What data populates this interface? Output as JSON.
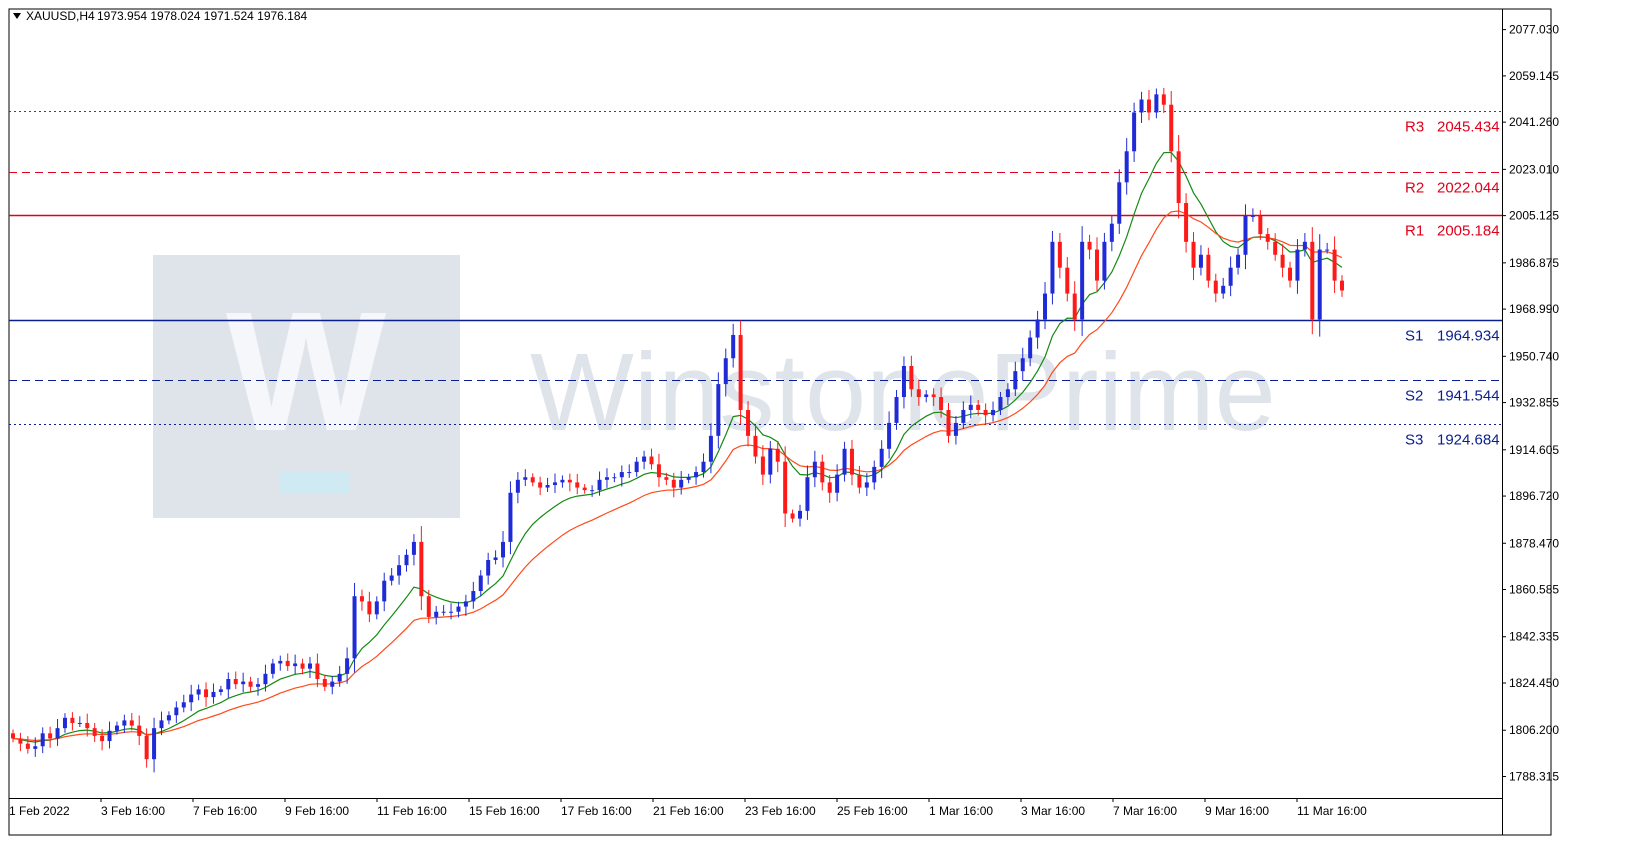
{
  "window": {
    "symbol_label": "XAUUSD,H4",
    "ohlc_label": "1973.954 1978.024 1971.524 1976.184",
    "menu_icon": "triangle-down-icon"
  },
  "watermark": {
    "text": "WinstonePrime",
    "logo_letter": "W"
  },
  "colors": {
    "bull": "#1f2bd6",
    "bear": "#ff1a1a",
    "ema_fast": "#138a13",
    "ema_slow": "#ff4a1a",
    "resistance": "#e0001b",
    "support": "#0a1f8f",
    "grid_axis": "#000000"
  },
  "chart_data": {
    "type": "candlestick",
    "symbol": "XAUUSD",
    "timeframe": "H4",
    "ylim": [
      1780,
      2085
    ],
    "y_ticks": [
      "2077.030",
      "2059.145",
      "2041.260",
      "2023.010",
      "2005.125",
      "1986.875",
      "1968.990",
      "1950.740",
      "1932.855",
      "1914.605",
      "1896.720",
      "1878.470",
      "1860.585",
      "1842.335",
      "1824.450",
      "1806.200",
      "1788.315"
    ],
    "x_ticks": [
      "1 Feb 2022",
      "3 Feb 16:00",
      "7 Feb 16:00",
      "9 Feb 16:00",
      "11 Feb 16:00",
      "15 Feb 16:00",
      "17 Feb 16:00",
      "21 Feb 16:00",
      "23 Feb 16:00",
      "25 Feb 16:00",
      "1 Mar 16:00",
      "3 Mar 16:00",
      "7 Mar 16:00",
      "9 Mar 16:00",
      "11 Mar 16:00"
    ],
    "levels": [
      {
        "label": "R3",
        "value": 2045.434,
        "value_text": "2045.434",
        "kind": "resistance",
        "style": "dotted"
      },
      {
        "label": "R2",
        "value": 2022.044,
        "value_text": "2022.044",
        "kind": "resistance",
        "style": "dashed"
      },
      {
        "label": "R1",
        "value": 2005.184,
        "value_text": "2005.184",
        "kind": "resistance",
        "style": "solid"
      },
      {
        "label": "S1",
        "value": 1964.934,
        "value_text": "1964.934",
        "kind": "support",
        "style": "solid"
      },
      {
        "label": "S2",
        "value": 1941.544,
        "value_text": "1941.544",
        "kind": "support",
        "style": "dashed"
      },
      {
        "label": "S3",
        "value": 1924.684,
        "value_text": "1924.684",
        "kind": "support",
        "style": "dotted"
      }
    ],
    "closes": [
      1803,
      1801,
      1799,
      1800,
      1805,
      1803,
      1807,
      1811,
      1809,
      1809,
      1807,
      1804,
      1802,
      1806,
      1808,
      1810,
      1808,
      1804,
      1795,
      1807,
      1810,
      1812,
      1815,
      1817,
      1820,
      1822,
      1819,
      1821,
      1822,
      1826,
      1824,
      1825,
      1823,
      1824,
      1828,
      1832,
      1833,
      1831,
      1832,
      1830,
      1832,
      1826,
      1823,
      1825,
      1828,
      1834,
      1858,
      1856,
      1851,
      1856,
      1864,
      1866,
      1870,
      1874,
      1879,
      1858,
      1850,
      1852,
      1852,
      1852,
      1854,
      1856,
      1860,
      1866,
      1872,
      1873,
      1879,
      1898,
      1903,
      1904,
      1902,
      1900,
      1901,
      1902,
      1903,
      1902,
      1900,
      1899,
      1899,
      1903,
      1904,
      1904,
      1906,
      1906,
      1910,
      1912,
      1909,
      1904,
      1903,
      1900,
      1903,
      1904,
      1906,
      1910,
      1920,
      1940,
      1950,
      1959,
      1930,
      1920,
      1912,
      1905,
      1915,
      1910,
      1890,
      1888,
      1891,
      1904,
      1910,
      1902,
      1898,
      1905,
      1915,
      1905,
      1900,
      1902,
      1908,
      1915,
      1925,
      1935,
      1947,
      1938,
      1935,
      1936,
      1935,
      1930,
      1920,
      1925,
      1930,
      1932,
      1930,
      1928,
      1930,
      1935,
      1938,
      1945,
      1950,
      1958,
      1965,
      1975,
      1995,
      1985,
      1975,
      1965,
      1995,
      1992,
      1980,
      1995,
      2002,
      2018,
      2030,
      2045,
      2050,
      2045,
      2052,
      2048,
      2030,
      2010,
      1995,
      1985,
      1990,
      1980,
      1975,
      1978,
      1985,
      1990,
      2005,
      2005,
      1998,
      1995,
      1990,
      1985,
      1980,
      1992,
      1995,
      1965,
      1992,
      1992,
      1980,
      1976.184
    ],
    "overlays": [
      {
        "type": "ema",
        "period": 10,
        "color_key": "ema_fast"
      },
      {
        "type": "ema",
        "period": 21,
        "color_key": "ema_slow"
      }
    ]
  }
}
